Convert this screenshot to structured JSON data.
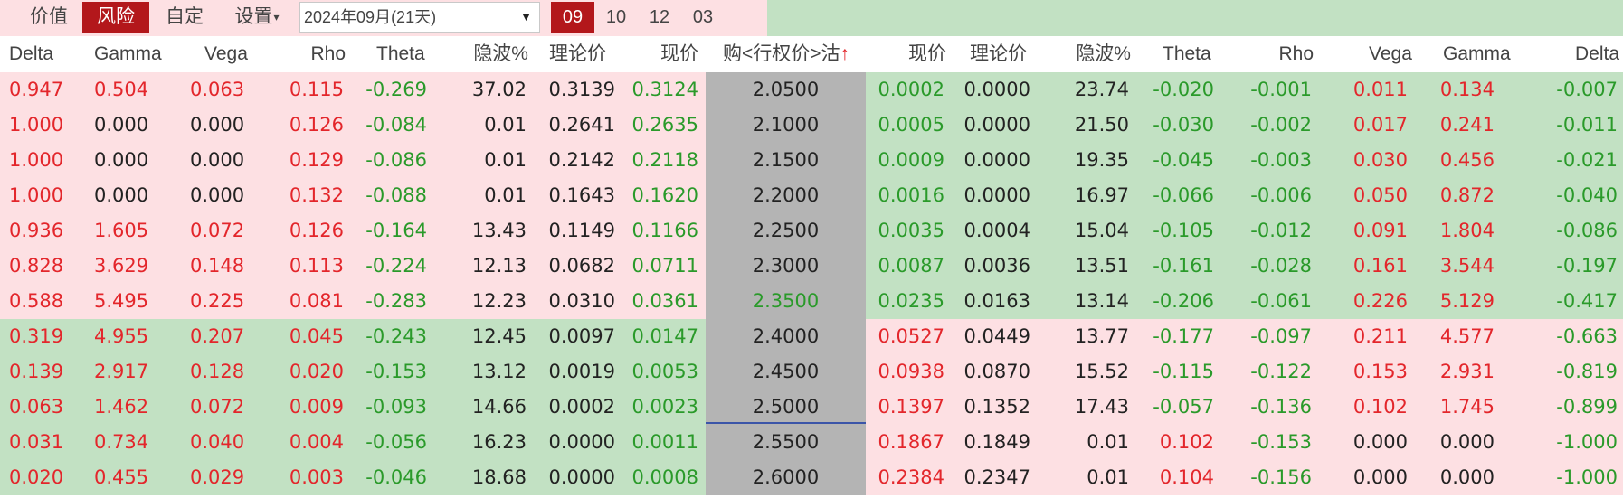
{
  "toolbar": {
    "value_label": "价值",
    "risk_label": "风险",
    "custom_label": "自定",
    "settings_label": "设置",
    "settings_caret": "▾",
    "expiry_value": "2024年09月(21天)",
    "expiry_caret": "▼",
    "months": [
      "09",
      "10",
      "12",
      "03"
    ],
    "active_month": "09"
  },
  "headers": {
    "call": [
      "Delta",
      "Gamma",
      "Vega",
      "Rho",
      "Theta",
      "隐波%",
      "理论价",
      "现价"
    ],
    "strike": "购<行权价>沽",
    "sort_arrow": "↑",
    "put": [
      "现价",
      "理论价",
      "隐波%",
      "Theta",
      "Rho",
      "Vega",
      "Gamma",
      "Delta"
    ]
  },
  "colors": {
    "itm_pink": "#fde0e3",
    "otm_green": "#c2e1c3",
    "strike_gray": "#b4b4b4",
    "active_red": "#b3171b",
    "value_red": "#e3262b",
    "value_green": "#2a9a2a",
    "value_black": "#222222"
  },
  "rows": [
    {
      "strike": "2.0500",
      "call": {
        "delta": "0.947",
        "gamma": "0.504",
        "vega": "0.063",
        "rho": "0.115",
        "theta": "-0.269",
        "iv": "37.02",
        "theo": "0.3139",
        "price": "0.3124"
      },
      "put": {
        "price": "0.0002",
        "theo": "0.0000",
        "iv": "23.74",
        "theta": "-0.020",
        "rho": "-0.001",
        "vega": "0.011",
        "gamma": "0.134",
        "delta": "-0.007"
      }
    },
    {
      "strike": "2.1000",
      "call": {
        "delta": "1.000",
        "gamma": "0.000",
        "vega": "0.000",
        "rho": "0.126",
        "theta": "-0.084",
        "iv": "0.01",
        "theo": "0.2641",
        "price": "0.2635"
      },
      "put": {
        "price": "0.0005",
        "theo": "0.0000",
        "iv": "21.50",
        "theta": "-0.030",
        "rho": "-0.002",
        "vega": "0.017",
        "gamma": "0.241",
        "delta": "-0.011"
      }
    },
    {
      "strike": "2.1500",
      "call": {
        "delta": "1.000",
        "gamma": "0.000",
        "vega": "0.000",
        "rho": "0.129",
        "theta": "-0.086",
        "iv": "0.01",
        "theo": "0.2142",
        "price": "0.2118"
      },
      "put": {
        "price": "0.0009",
        "theo": "0.0000",
        "iv": "19.35",
        "theta": "-0.045",
        "rho": "-0.003",
        "vega": "0.030",
        "gamma": "0.456",
        "delta": "-0.021"
      }
    },
    {
      "strike": "2.2000",
      "call": {
        "delta": "1.000",
        "gamma": "0.000",
        "vega": "0.000",
        "rho": "0.132",
        "theta": "-0.088",
        "iv": "0.01",
        "theo": "0.1643",
        "price": "0.1620"
      },
      "put": {
        "price": "0.0016",
        "theo": "0.0000",
        "iv": "16.97",
        "theta": "-0.066",
        "rho": "-0.006",
        "vega": "0.050",
        "gamma": "0.872",
        "delta": "-0.040"
      }
    },
    {
      "strike": "2.2500",
      "call": {
        "delta": "0.936",
        "gamma": "1.605",
        "vega": "0.072",
        "rho": "0.126",
        "theta": "-0.164",
        "iv": "13.43",
        "theo": "0.1149",
        "price": "0.1166"
      },
      "put": {
        "price": "0.0035",
        "theo": "0.0004",
        "iv": "15.04",
        "theta": "-0.105",
        "rho": "-0.012",
        "vega": "0.091",
        "gamma": "1.804",
        "delta": "-0.086"
      }
    },
    {
      "strike": "2.3000",
      "call": {
        "delta": "0.828",
        "gamma": "3.629",
        "vega": "0.148",
        "rho": "0.113",
        "theta": "-0.224",
        "iv": "12.13",
        "theo": "0.0682",
        "price": "0.0711"
      },
      "put": {
        "price": "0.0087",
        "theo": "0.0036",
        "iv": "13.51",
        "theta": "-0.161",
        "rho": "-0.028",
        "vega": "0.161",
        "gamma": "3.544",
        "delta": "-0.197"
      }
    },
    {
      "strike": "2.3500",
      "call": {
        "delta": "0.588",
        "gamma": "5.495",
        "vega": "0.225",
        "rho": "0.081",
        "theta": "-0.283",
        "iv": "12.23",
        "theo": "0.0310",
        "price": "0.0361"
      },
      "put": {
        "price": "0.0235",
        "theo": "0.0163",
        "iv": "13.14",
        "theta": "-0.206",
        "rho": "-0.061",
        "vega": "0.226",
        "gamma": "5.129",
        "delta": "-0.417"
      }
    },
    {
      "strike": "2.4000",
      "call": {
        "delta": "0.319",
        "gamma": "4.955",
        "vega": "0.207",
        "rho": "0.045",
        "theta": "-0.243",
        "iv": "12.45",
        "theo": "0.0097",
        "price": "0.0147"
      },
      "put": {
        "price": "0.0527",
        "theo": "0.0449",
        "iv": "13.77",
        "theta": "-0.177",
        "rho": "-0.097",
        "vega": "0.211",
        "gamma": "4.577",
        "delta": "-0.663"
      }
    },
    {
      "strike": "2.4500",
      "call": {
        "delta": "0.139",
        "gamma": "2.917",
        "vega": "0.128",
        "rho": "0.020",
        "theta": "-0.153",
        "iv": "13.12",
        "theo": "0.0019",
        "price": "0.0053"
      },
      "put": {
        "price": "0.0938",
        "theo": "0.0870",
        "iv": "15.52",
        "theta": "-0.115",
        "rho": "-0.122",
        "vega": "0.153",
        "gamma": "2.931",
        "delta": "-0.819"
      }
    },
    {
      "strike": "2.5000",
      "call": {
        "delta": "0.063",
        "gamma": "1.462",
        "vega": "0.072",
        "rho": "0.009",
        "theta": "-0.093",
        "iv": "14.66",
        "theo": "0.0002",
        "price": "0.0023"
      },
      "put": {
        "price": "0.1397",
        "theo": "0.1352",
        "iv": "17.43",
        "theta": "-0.057",
        "rho": "-0.136",
        "vega": "0.102",
        "gamma": "1.745",
        "delta": "-0.899"
      }
    },
    {
      "strike": "2.5500",
      "call": {
        "delta": "0.031",
        "gamma": "0.734",
        "vega": "0.040",
        "rho": "0.004",
        "theta": "-0.056",
        "iv": "16.23",
        "theo": "0.0000",
        "price": "0.0011"
      },
      "put": {
        "price": "0.1867",
        "theo": "0.1849",
        "iv": "0.01",
        "theta": "0.102",
        "rho": "-0.153",
        "vega": "0.000",
        "gamma": "0.000",
        "delta": "-1.000"
      }
    },
    {
      "strike": "2.6000",
      "call": {
        "delta": "0.020",
        "gamma": "0.455",
        "vega": "0.029",
        "rho": "0.003",
        "theta": "-0.046",
        "iv": "18.68",
        "theo": "0.0000",
        "price": "0.0008"
      },
      "put": {
        "price": "0.2384",
        "theo": "0.2347",
        "iv": "0.01",
        "theta": "0.104",
        "rho": "-0.156",
        "vega": "0.000",
        "gamma": "0.000",
        "delta": "-1.000"
      }
    }
  ]
}
